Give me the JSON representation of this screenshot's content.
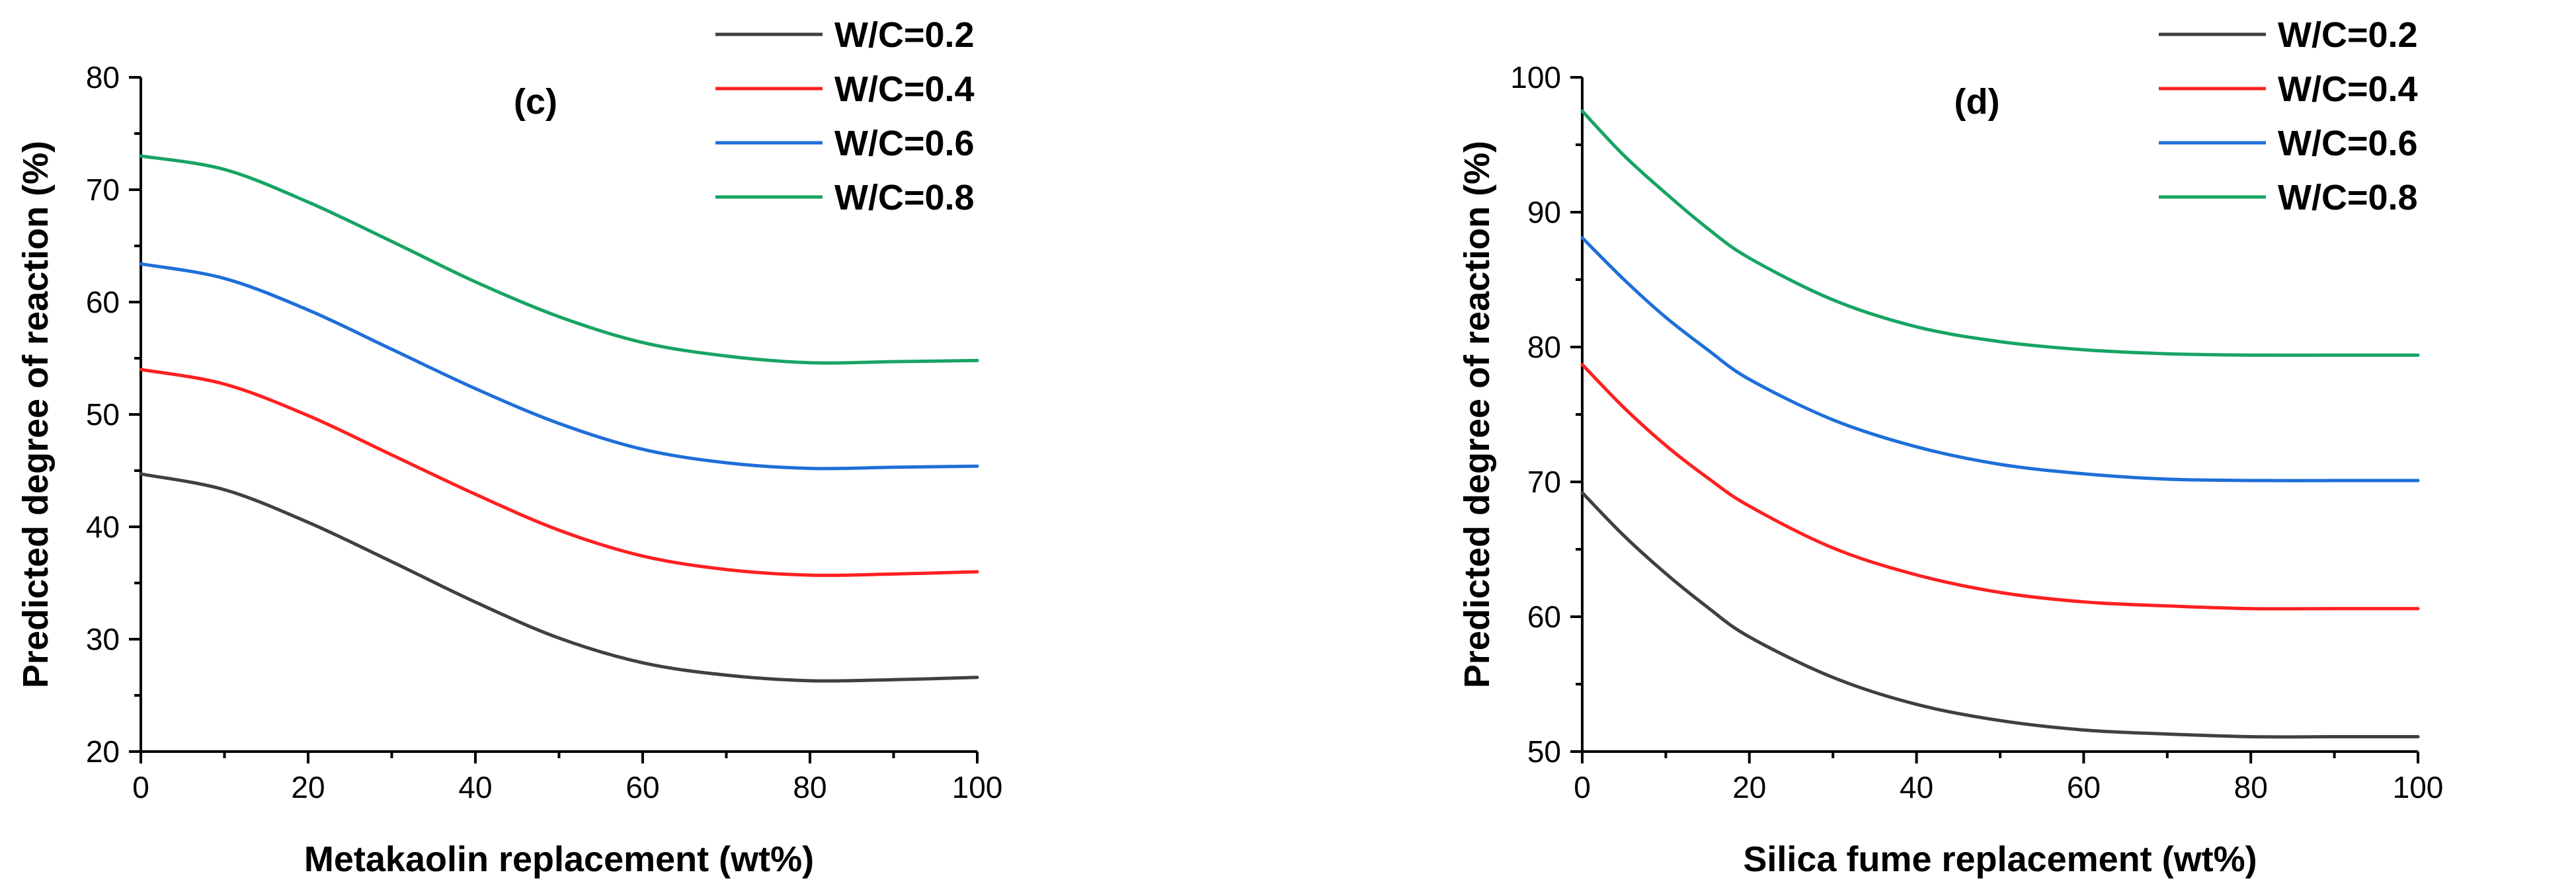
{
  "chart_data": [
    {
      "type": "line",
      "panel_label": "(c)",
      "xlabel": "Metakaolin replacement (wt%)",
      "ylabel": "Predicted degree of reaction (%)",
      "xlim": [
        0,
        100
      ],
      "ylim": [
        20,
        80
      ],
      "x_ticks": [
        0,
        20,
        40,
        60,
        80,
        100
      ],
      "y_ticks": [
        20,
        30,
        40,
        50,
        60,
        70,
        80
      ],
      "grid": false,
      "legend_position": "top-right",
      "x": [
        0,
        10,
        20,
        30,
        40,
        50,
        60,
        70,
        80,
        90,
        100
      ],
      "series": [
        {
          "name": "W/C=0.2",
          "color": "#404040",
          "values": [
            44.7,
            43.3,
            40.4,
            36.9,
            33.3,
            30.1,
            27.9,
            26.8,
            26.3,
            26.4,
            26.6
          ]
        },
        {
          "name": "W/C=0.4",
          "color": "#ff2020",
          "values": [
            54.0,
            52.7,
            49.9,
            46.4,
            42.9,
            39.7,
            37.4,
            36.2,
            35.7,
            35.8,
            36.0
          ]
        },
        {
          "name": "W/C=0.6",
          "color": "#1e6fd9",
          "values": [
            63.4,
            62.1,
            59.3,
            55.8,
            52.3,
            49.2,
            46.9,
            45.7,
            45.2,
            45.3,
            45.4
          ]
        },
        {
          "name": "W/C=0.8",
          "color": "#17a463",
          "values": [
            73.0,
            71.8,
            68.9,
            65.4,
            61.8,
            58.7,
            56.4,
            55.2,
            54.6,
            54.7,
            54.8
          ]
        }
      ]
    },
    {
      "type": "line",
      "panel_label": "(d)",
      "xlabel": "Silica fume replacement (wt%)",
      "ylabel": "Predicted degree of reaction (%)",
      "xlim": [
        0,
        100
      ],
      "ylim": [
        50,
        100
      ],
      "x_ticks": [
        0,
        20,
        40,
        60,
        80,
        100
      ],
      "y_ticks": [
        50,
        60,
        70,
        80,
        90,
        100
      ],
      "grid": false,
      "legend_position": "top-right",
      "x": [
        0,
        5,
        10,
        15,
        20,
        30,
        40,
        50,
        60,
        70,
        80,
        90,
        100
      ],
      "series": [
        {
          "name": "W/C=0.2",
          "color": "#404040",
          "values": [
            69.2,
            66.0,
            63.2,
            60.7,
            58.5,
            55.5,
            53.5,
            52.3,
            51.6,
            51.3,
            51.1,
            51.1,
            51.1
          ]
        },
        {
          "name": "W/C=0.4",
          "color": "#ff2020",
          "values": [
            78.7,
            75.5,
            72.7,
            70.3,
            68.2,
            65.1,
            63.1,
            61.8,
            61.1,
            60.8,
            60.6,
            60.6,
            60.6
          ]
        },
        {
          "name": "W/C=0.6",
          "color": "#1e6fd9",
          "values": [
            88.1,
            85.0,
            82.2,
            79.8,
            77.6,
            74.6,
            72.6,
            71.3,
            70.6,
            70.2,
            70.1,
            70.1,
            70.1
          ]
        },
        {
          "name": "W/C=0.8",
          "color": "#17a463",
          "values": [
            97.5,
            94.2,
            91.4,
            88.8,
            86.6,
            83.5,
            81.5,
            80.4,
            79.8,
            79.5,
            79.4,
            79.4,
            79.4
          ]
        }
      ]
    }
  ]
}
